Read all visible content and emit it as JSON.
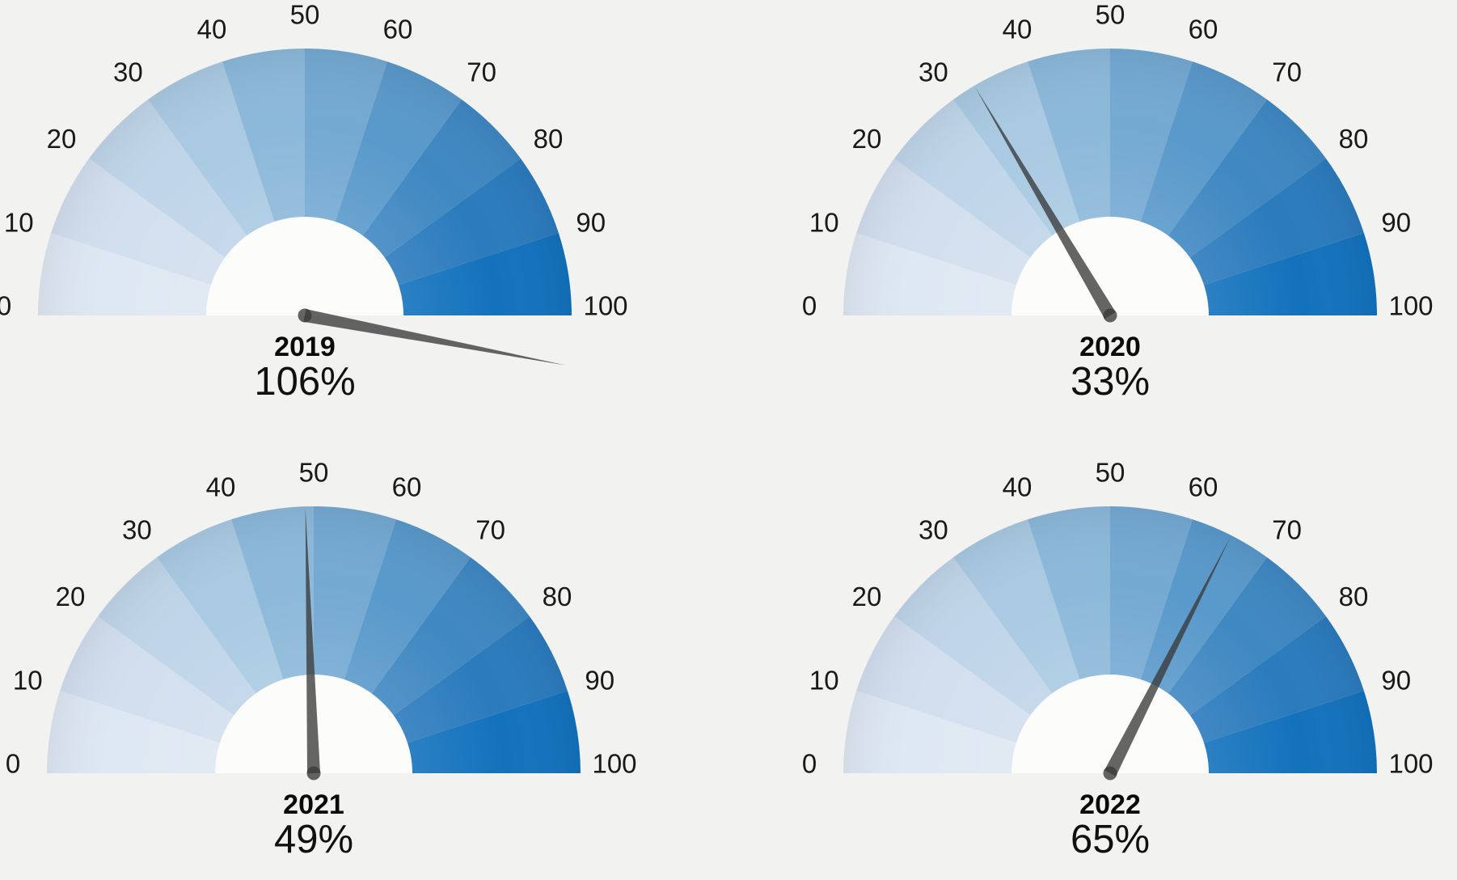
{
  "chart_data": {
    "type": "gauge",
    "layout": "2x2 grid of semicircular speedometer gauges",
    "scale": {
      "min": 0,
      "max": 100,
      "tick_step": 10,
      "tick_labels": [
        "0",
        "10",
        "20",
        "30",
        "40",
        "50",
        "60",
        "70",
        "80",
        "90",
        "100"
      ]
    },
    "gauges": [
      {
        "year": "2019",
        "value": 106,
        "value_label": "106%"
      },
      {
        "year": "2020",
        "value": 33,
        "value_label": "33%"
      },
      {
        "year": "2021",
        "value": 49,
        "value_label": "49%"
      },
      {
        "year": "2022",
        "value": 65,
        "value_label": "65%"
      }
    ],
    "segment_colors": [
      "#dee8f2",
      "#d2dfee",
      "#c0d5e9",
      "#a9cae2",
      "#8cb8d9",
      "#74a9d2",
      "#5999cb",
      "#3f88c2",
      "#2b7bbd",
      "#1372bc"
    ],
    "needle_color": "#3a3a3a",
    "needle_opacity": 0.78,
    "inner_circle_color": "#fcfcfb",
    "background_color": "#f2f2f0",
    "tick_text_color": "#191919",
    "label_text_color": "#0a0a0a"
  }
}
